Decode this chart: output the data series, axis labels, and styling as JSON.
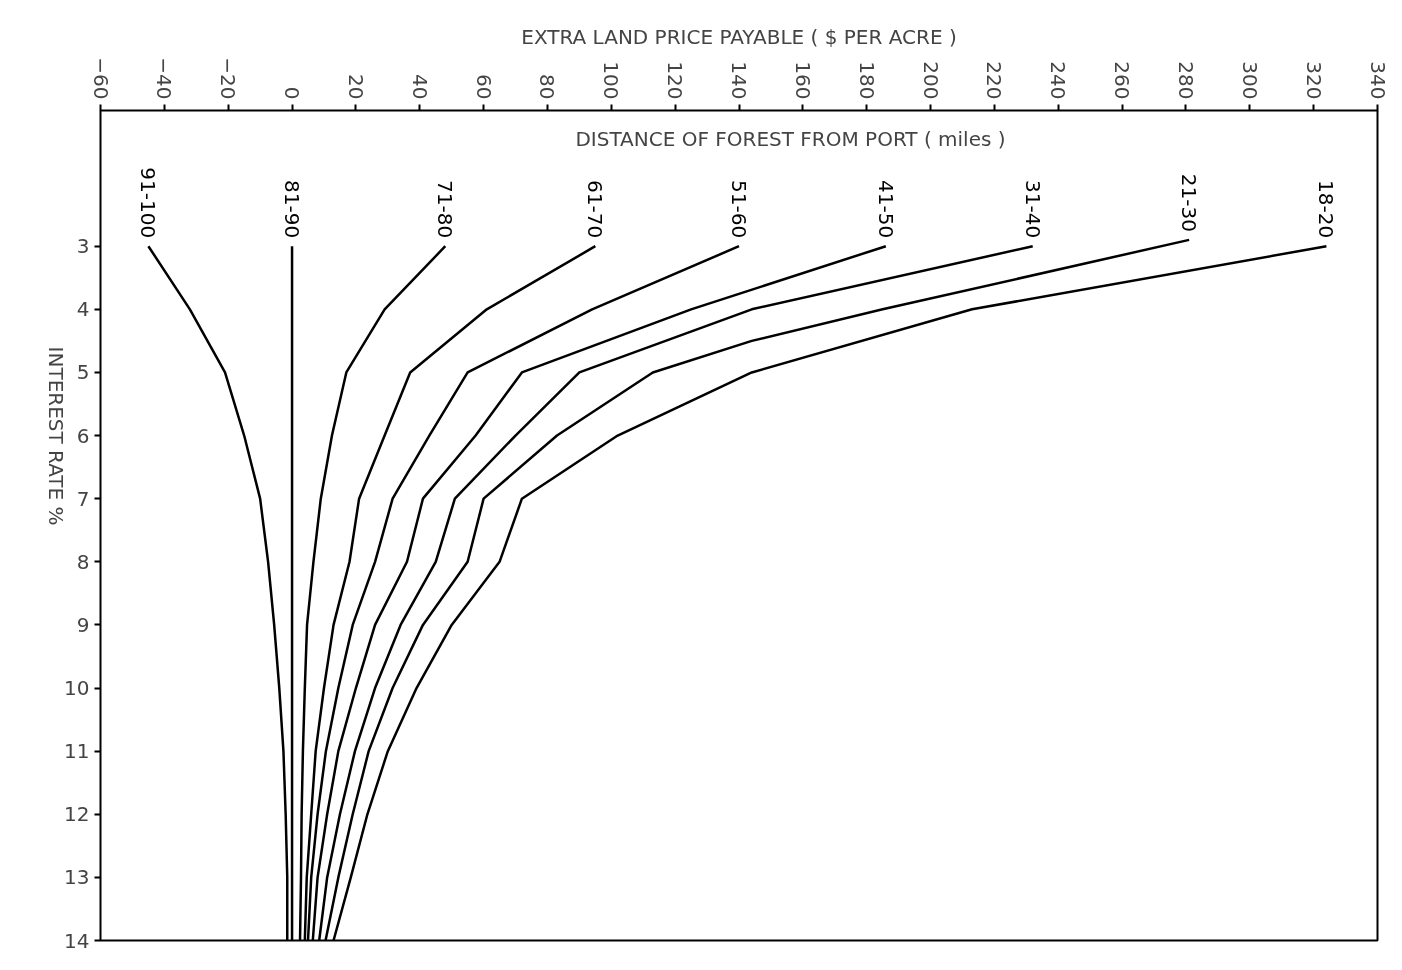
{
  "chart_data": {
    "type": "line",
    "xlabel": "EXTRA LAND PRICE PAYABLE ( $ PER ACRE )",
    "ylabel": "INTEREST RATE %",
    "annotations": [
      "DISTANCE OF FOREST FROM PORT ( miles )"
    ],
    "xlim": [
      -60,
      340
    ],
    "xticks": [
      -60,
      -40,
      -20,
      0,
      20,
      40,
      60,
      80,
      100,
      120,
      140,
      160,
      180,
      200,
      220,
      240,
      260,
      280,
      300,
      320,
      340
    ],
    "ylim": [
      14,
      0.85
    ],
    "yticks": [
      3,
      4,
      5,
      6,
      7,
      8,
      9,
      10,
      11,
      12,
      13,
      14
    ],
    "grid": false,
    "marker": "none",
    "line_style": "solid",
    "series": [
      {
        "name": "91-100",
        "color": "#000000",
        "x": [
          -45,
          -32,
          -21,
          -15,
          -10,
          -7.5,
          -5.6,
          -4,
          -2.7,
          -2,
          -1.5,
          -1.5
        ],
        "values": [
          3,
          4,
          5,
          6,
          7,
          8,
          9,
          10,
          11,
          12,
          13,
          14
        ]
      },
      {
        "name": "81-90",
        "color": "#000000",
        "x": [
          0,
          0,
          0,
          0,
          0,
          0,
          0,
          0,
          0,
          0,
          0,
          0
        ],
        "values": [
          3,
          4,
          5,
          6,
          7,
          8,
          9,
          10,
          11,
          12,
          13,
          14
        ]
      },
      {
        "name": "71-80",
        "color": "#000000",
        "x": [
          48,
          29,
          17,
          12.5,
          9,
          6.7,
          4.7,
          4,
          3.4,
          3,
          2.8,
          2.5
        ],
        "values": [
          3,
          4,
          5,
          6,
          7,
          8,
          9,
          10,
          11,
          12,
          13,
          14
        ]
      },
      {
        "name": "61-70",
        "color": "#000000",
        "x": [
          95,
          61,
          37,
          29,
          21,
          18,
          13,
          10,
          7.4,
          6,
          4.6,
          4
        ],
        "values": [
          3,
          4,
          5,
          6,
          7,
          8,
          9,
          10,
          11,
          12,
          13,
          14
        ]
      },
      {
        "name": "51-60",
        "color": "#000000",
        "x": [
          140,
          94,
          55,
          43,
          31.5,
          26,
          19,
          14.5,
          10.6,
          8,
          6,
          5
        ],
        "values": [
          3,
          4,
          5,
          6,
          7,
          8,
          9,
          10,
          11,
          12,
          13,
          14
        ]
      },
      {
        "name": "41-50",
        "color": "#000000",
        "x": [
          186,
          125,
          72,
          57.5,
          41,
          36,
          26,
          20,
          14.5,
          11,
          8,
          6.5
        ],
        "values": [
          3,
          4,
          5,
          6,
          7,
          8,
          9,
          10,
          11,
          12,
          13,
          14
        ]
      },
      {
        "name": "31-40",
        "color": "#000000",
        "x": [
          232,
          144,
          90,
          70,
          51,
          45,
          34,
          26,
          19.7,
          15,
          11,
          8.5
        ],
        "values": [
          3,
          4,
          5,
          6,
          7,
          8,
          9,
          10,
          11,
          12,
          13,
          14
        ]
      },
      {
        "name": "21-30",
        "color": "#000000",
        "x": [
          281,
          185,
          144,
          113,
          83,
          60,
          55,
          41,
          31.5,
          24,
          19,
          14.5,
          10.5
        ],
        "values": [
          2.9,
          4,
          4.5,
          5,
          6,
          7,
          8,
          9,
          10,
          11,
          12,
          13,
          14
        ]
      },
      {
        "name": "18-20",
        "color": "#000000",
        "x": [
          324,
          213,
          144,
          102,
          72,
          65,
          50,
          39,
          30,
          23.6,
          18.4,
          13
        ],
        "values": [
          3,
          4,
          5,
          6,
          7,
          8,
          9,
          10,
          11,
          12,
          13,
          14
        ]
      }
    ]
  }
}
